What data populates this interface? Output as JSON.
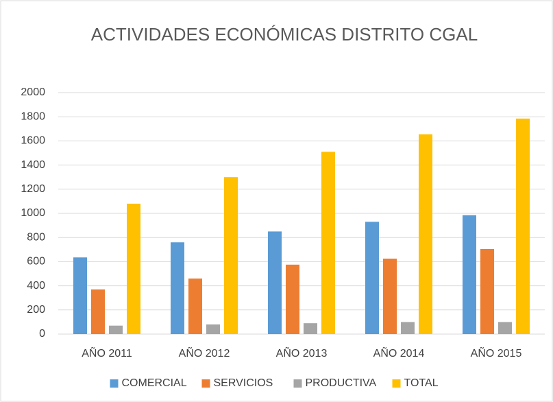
{
  "chart_data": {
    "type": "bar",
    "title": "ACTIVIDADES ECONÓMICAS DISTRITO CGAL",
    "categories": [
      "AÑO 2011",
      "AÑO 2012",
      "AÑO 2013",
      "AÑO 2014",
      "AÑO 2015"
    ],
    "series": [
      {
        "name": "COMERCIAL",
        "color": "#5b9bd5",
        "values": [
          635,
          760,
          850,
          930,
          985
        ]
      },
      {
        "name": "SERVICIOS",
        "color": "#ed7d31",
        "values": [
          370,
          460,
          575,
          625,
          705
        ]
      },
      {
        "name": "PRODUCTIVA",
        "color": "#a5a5a5",
        "values": [
          70,
          80,
          90,
          100,
          100
        ]
      },
      {
        "name": "TOTAL",
        "color": "#ffc000",
        "values": [
          1080,
          1300,
          1510,
          1655,
          1785
        ]
      }
    ],
    "ylim": [
      0,
      2000
    ],
    "yticks": [
      0,
      200,
      400,
      600,
      800,
      1000,
      1200,
      1400,
      1600,
      1800,
      2000
    ],
    "grid": true,
    "legend": "bottom"
  }
}
